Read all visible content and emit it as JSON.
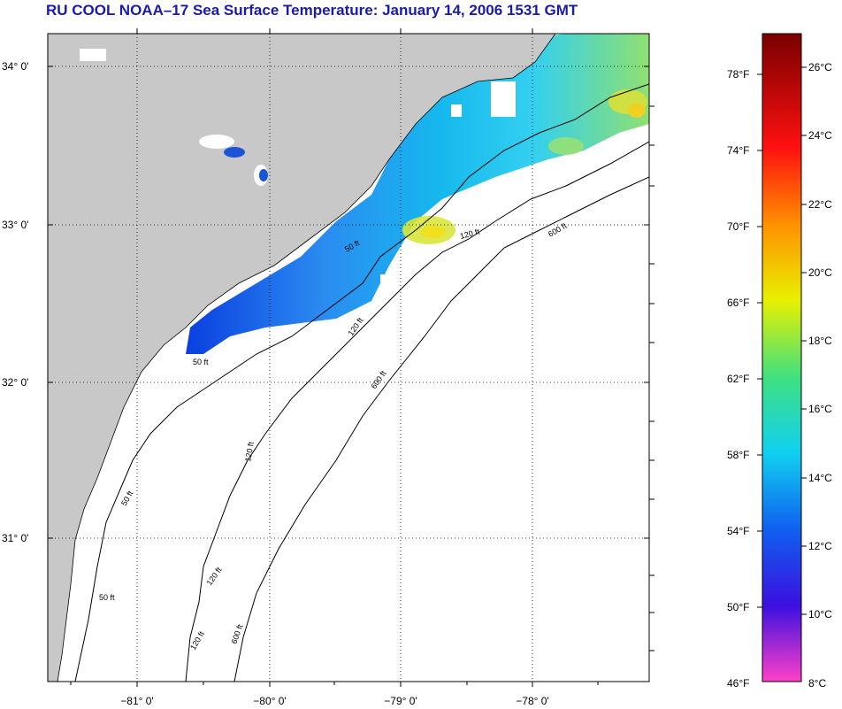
{
  "title": "RU COOL  NOAA–17  Sea Surface Temperature:  January 14, 2006 1531 GMT",
  "lat_labels": [
    "34° 0'",
    "33° 0'",
    "32° 0'",
    "31° 0'"
  ],
  "lon_labels": [
    "−81° 0'",
    "−80° 0'",
    "−79° 0'",
    "−78° 0'"
  ],
  "contour_labels": {
    "c50_a": "50 ft",
    "c50_b": "50 ft",
    "c50_c": "50 ft",
    "c50_d": "50 ft",
    "c120_a": "120 ft",
    "c120_b": "120 ft",
    "c120_c": "120 ft",
    "c120_d": "120 ft",
    "c120_e": "120 ft",
    "c600_a": "600 ft",
    "c600_b": "600 ft",
    "c600_c": "600 ft"
  },
  "colorbar": {
    "fahrenheit": [
      "78°F",
      "74°F",
      "70°F",
      "66°F",
      "62°F",
      "58°F",
      "54°F",
      "50°F",
      "46°F"
    ],
    "celsius": [
      "26°C",
      "24°C",
      "22°C",
      "20°C",
      "18°C",
      "16°C",
      "14°C",
      "12°C",
      "10°C",
      "8°C"
    ]
  },
  "colors": {
    "title": "#1a1ab0",
    "land": "#c8c8c8",
    "ocean": "#ffffff"
  }
}
